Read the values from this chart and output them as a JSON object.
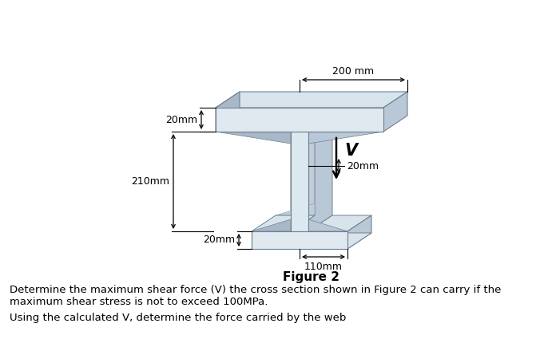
{
  "bg_color": "#ffffff",
  "figure_label": "Figure 2",
  "dim_200mm": "200 mm",
  "dim_20mm_top": "20mm",
  "dim_20mm_right": "20mm",
  "dim_210mm": "210mm",
  "dim_20mm_bot": "20mm",
  "dim_110mm": "110mm",
  "shear_label": "V",
  "text_line1": "Determine the maximum shear force (V) the cross section shown in Figure 2 can carry if the",
  "text_line2": "maximum shear stress is not to exceed 100MPa.",
  "text_line3": "Using the calculated V, determine the force carried by the web",
  "c1": "#ccd8e2",
  "c2": "#d8e4ec",
  "c3": "#b8c8d6",
  "c4": "#a8b8c8",
  "c5": "#e0e8f0",
  "c6": "#c0ccd8",
  "c7": "#dce8f0",
  "edge": "#708090",
  "edge2": "#90a0b0"
}
